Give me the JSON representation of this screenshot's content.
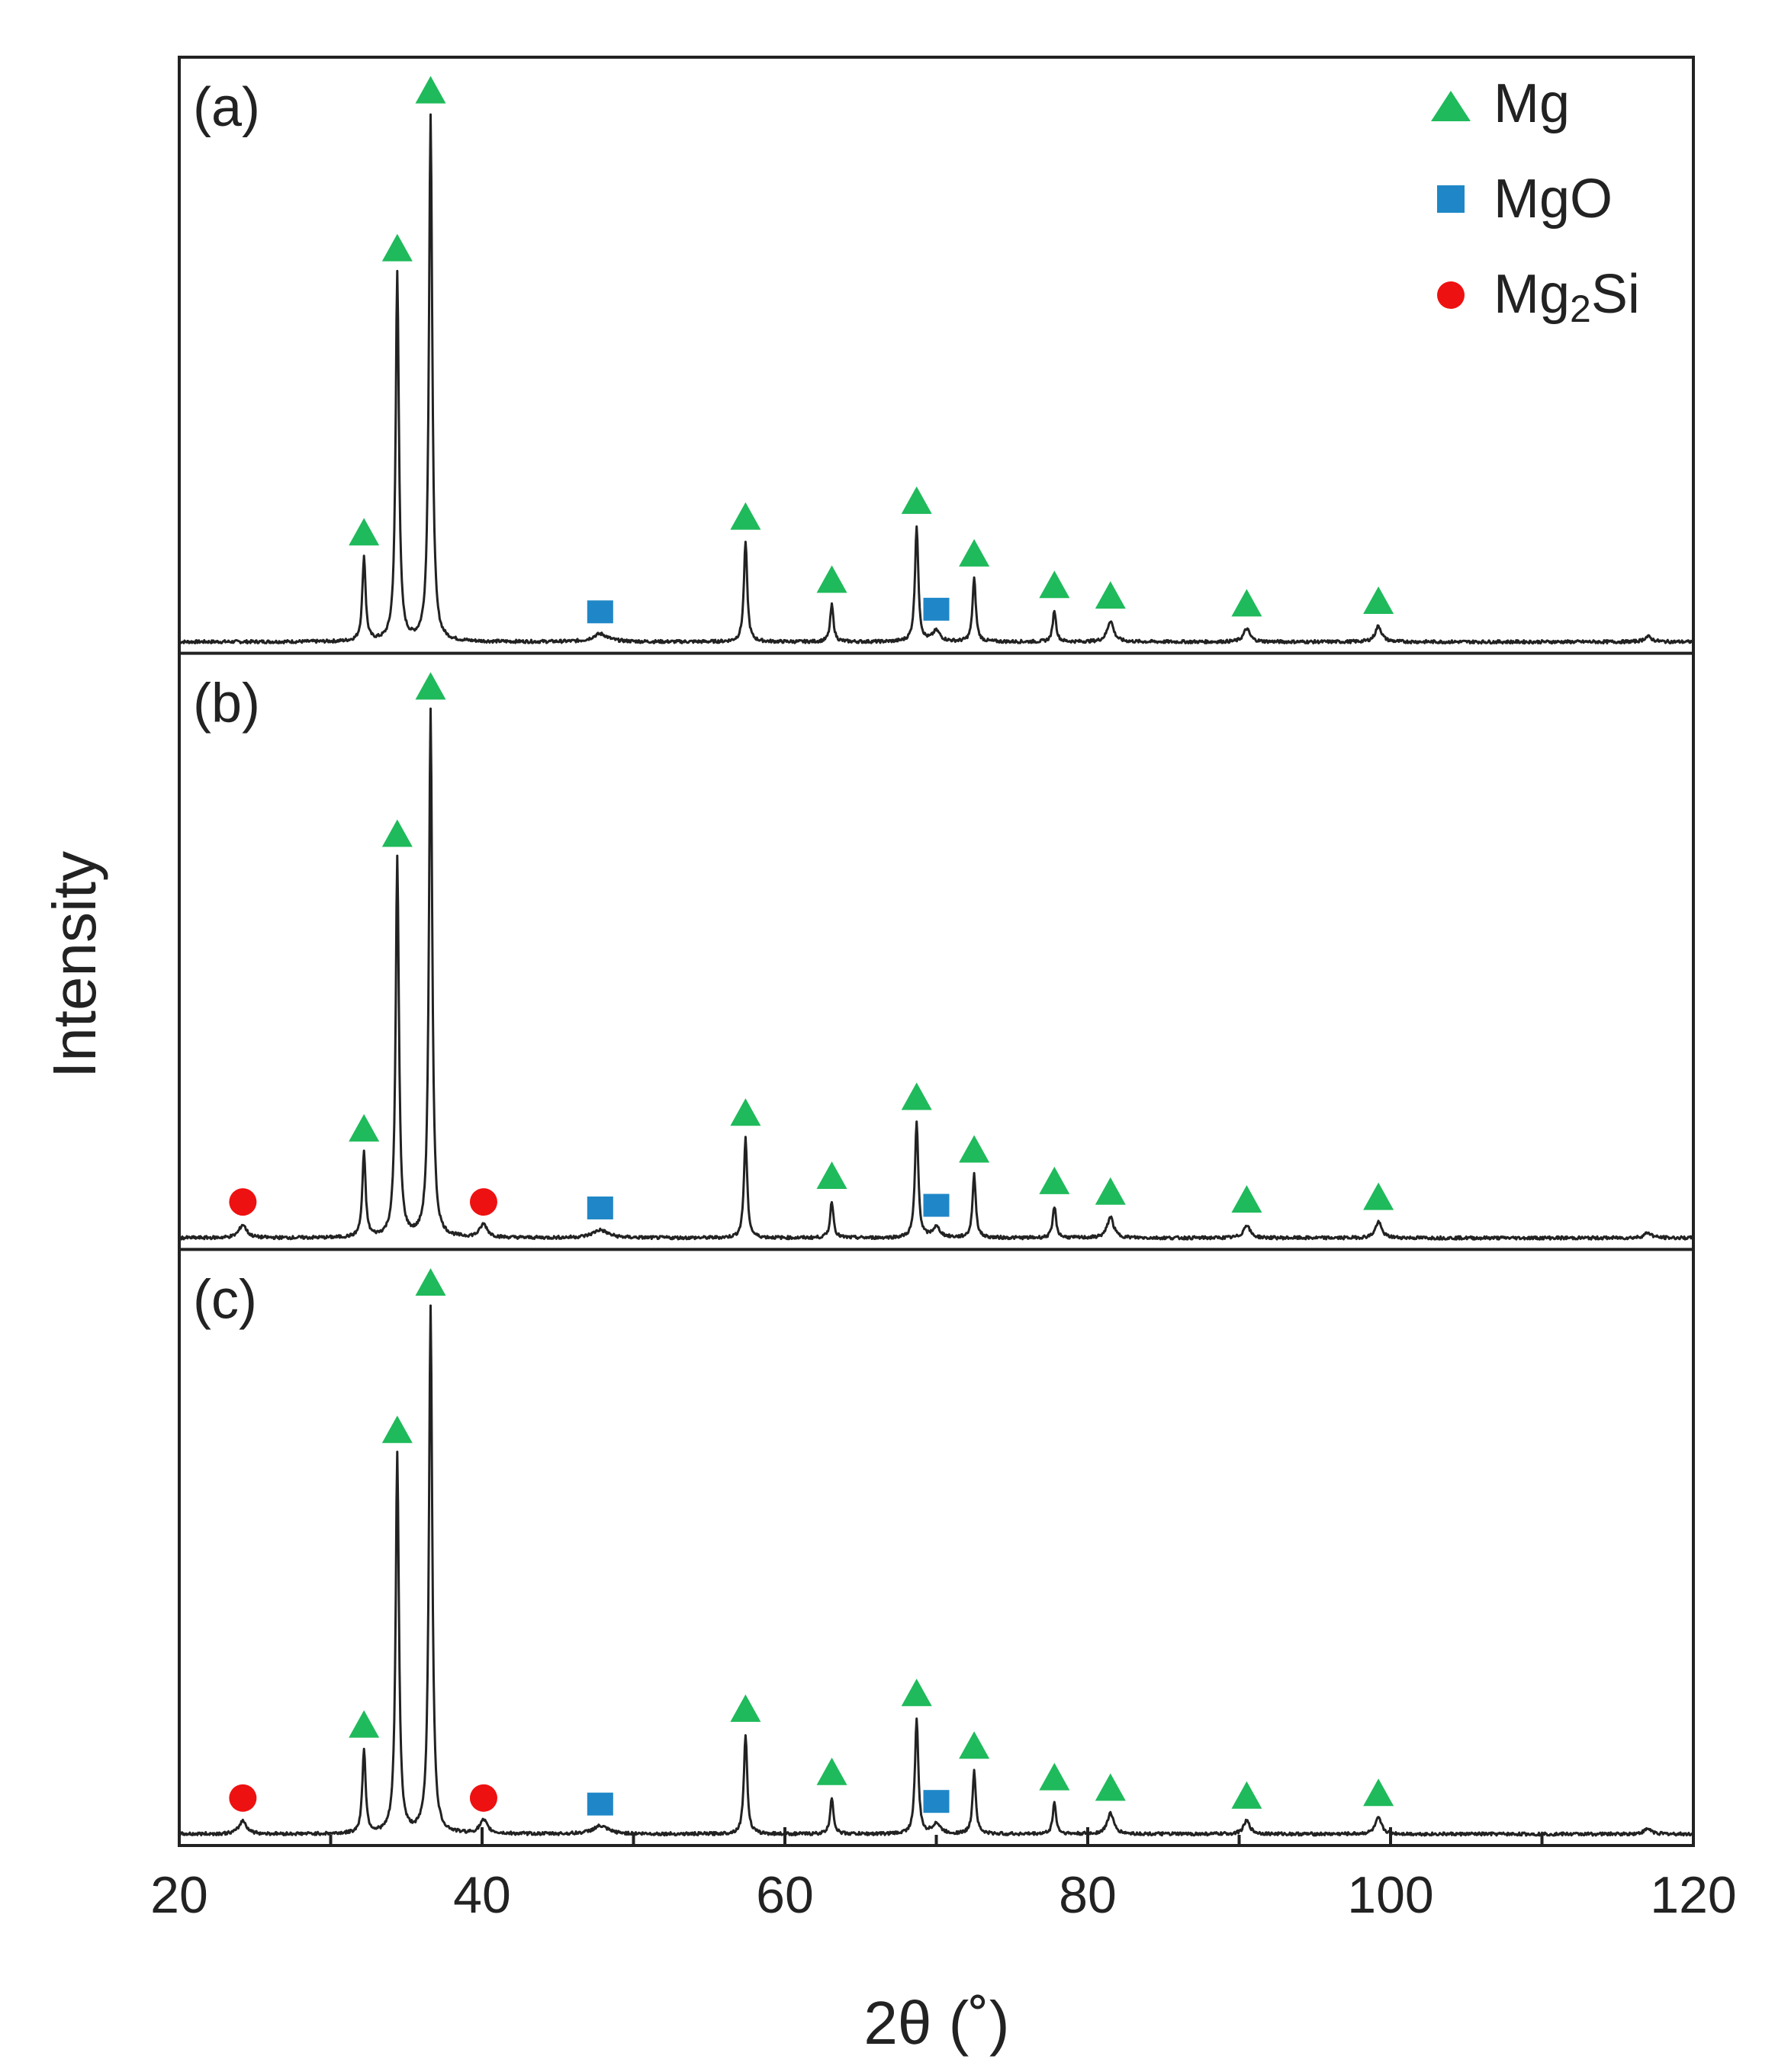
{
  "chart_data": {
    "type": "line",
    "title": "",
    "xlabel": "2θ (˚)",
    "ylabel": "Intensity",
    "xlim": [
      20,
      120
    ],
    "xticks": [
      20,
      40,
      60,
      80,
      100,
      120
    ],
    "grid": false,
    "legend_position": "top-right",
    "legend": [
      {
        "name": "Mg",
        "marker": "triangle",
        "color": "#1fba5b"
      },
      {
        "name": "MgO",
        "marker": "square",
        "color": "#1f87c7"
      },
      {
        "name": "Mg2Si",
        "label_main": "Mg",
        "label_sub": "2",
        "label_tail": "Si",
        "marker": "circle",
        "color": "#ee1111"
      }
    ],
    "panels": [
      {
        "label": "(a)",
        "peaks": [
          {
            "x": 32.2,
            "h": 0.16,
            "w": 0.13
          },
          {
            "x": 34.4,
            "h": 0.7,
            "w": 0.13
          },
          {
            "x": 36.6,
            "h": 1.0,
            "w": 0.13
          },
          {
            "x": 47.8,
            "h": 0.015,
            "w": 0.6
          },
          {
            "x": 57.4,
            "h": 0.19,
            "w": 0.13
          },
          {
            "x": 63.1,
            "h": 0.07,
            "w": 0.13
          },
          {
            "x": 68.7,
            "h": 0.22,
            "w": 0.13
          },
          {
            "x": 70.0,
            "h": 0.02,
            "w": 0.3
          },
          {
            "x": 72.5,
            "h": 0.12,
            "w": 0.13
          },
          {
            "x": 77.8,
            "h": 0.06,
            "w": 0.13
          },
          {
            "x": 81.5,
            "h": 0.04,
            "w": 0.25
          },
          {
            "x": 90.5,
            "h": 0.025,
            "w": 0.25
          },
          {
            "x": 99.2,
            "h": 0.03,
            "w": 0.25
          },
          {
            "x": 117.0,
            "h": 0.01,
            "w": 0.3
          }
        ],
        "markers": [
          {
            "phase": "Mg",
            "x": 32.2
          },
          {
            "phase": "Mg",
            "x": 34.4
          },
          {
            "phase": "Mg",
            "x": 36.6
          },
          {
            "phase": "Mg",
            "x": 57.4
          },
          {
            "phase": "Mg",
            "x": 63.1
          },
          {
            "phase": "Mg",
            "x": 68.7
          },
          {
            "phase": "Mg",
            "x": 72.5
          },
          {
            "phase": "Mg",
            "x": 77.8
          },
          {
            "phase": "Mg",
            "x": 81.5
          },
          {
            "phase": "Mg",
            "x": 90.5
          },
          {
            "phase": "Mg",
            "x": 99.2
          },
          {
            "phase": "MgO",
            "x": 47.8
          },
          {
            "phase": "MgO",
            "x": 70.0
          }
        ]
      },
      {
        "label": "(b)",
        "peaks": [
          {
            "x": 24.2,
            "h": 0.025,
            "w": 0.3
          },
          {
            "x": 32.2,
            "h": 0.16,
            "w": 0.13
          },
          {
            "x": 34.4,
            "h": 0.72,
            "w": 0.13
          },
          {
            "x": 36.6,
            "h": 1.0,
            "w": 0.13
          },
          {
            "x": 40.1,
            "h": 0.025,
            "w": 0.3
          },
          {
            "x": 47.8,
            "h": 0.015,
            "w": 0.6
          },
          {
            "x": 57.4,
            "h": 0.19,
            "w": 0.13
          },
          {
            "x": 63.1,
            "h": 0.07,
            "w": 0.13
          },
          {
            "x": 68.7,
            "h": 0.22,
            "w": 0.13
          },
          {
            "x": 70.0,
            "h": 0.02,
            "w": 0.3
          },
          {
            "x": 72.5,
            "h": 0.12,
            "w": 0.13
          },
          {
            "x": 77.8,
            "h": 0.06,
            "w": 0.13
          },
          {
            "x": 81.5,
            "h": 0.04,
            "w": 0.25
          },
          {
            "x": 90.5,
            "h": 0.025,
            "w": 0.25
          },
          {
            "x": 99.2,
            "h": 0.03,
            "w": 0.25
          },
          {
            "x": 117.0,
            "h": 0.01,
            "w": 0.3
          }
        ],
        "markers": [
          {
            "phase": "Mg2Si",
            "x": 24.2
          },
          {
            "phase": "Mg2Si",
            "x": 40.1
          },
          {
            "phase": "Mg",
            "x": 32.2
          },
          {
            "phase": "Mg",
            "x": 34.4
          },
          {
            "phase": "Mg",
            "x": 36.6
          },
          {
            "phase": "Mg",
            "x": 57.4
          },
          {
            "phase": "Mg",
            "x": 63.1
          },
          {
            "phase": "Mg",
            "x": 68.7
          },
          {
            "phase": "Mg",
            "x": 72.5
          },
          {
            "phase": "Mg",
            "x": 77.8
          },
          {
            "phase": "Mg",
            "x": 81.5
          },
          {
            "phase": "Mg",
            "x": 90.5
          },
          {
            "phase": "Mg",
            "x": 99.2
          },
          {
            "phase": "MgO",
            "x": 47.8
          },
          {
            "phase": "MgO",
            "x": 70.0
          }
        ]
      },
      {
        "label": "(c)",
        "peaks": [
          {
            "x": 24.2,
            "h": 0.025,
            "w": 0.3
          },
          {
            "x": 32.2,
            "h": 0.16,
            "w": 0.13
          },
          {
            "x": 34.4,
            "h": 0.72,
            "w": 0.13
          },
          {
            "x": 36.6,
            "h": 1.0,
            "w": 0.13
          },
          {
            "x": 40.1,
            "h": 0.025,
            "w": 0.3
          },
          {
            "x": 47.8,
            "h": 0.015,
            "w": 0.6
          },
          {
            "x": 57.4,
            "h": 0.19,
            "w": 0.13
          },
          {
            "x": 63.1,
            "h": 0.07,
            "w": 0.13
          },
          {
            "x": 68.7,
            "h": 0.22,
            "w": 0.13
          },
          {
            "x": 70.0,
            "h": 0.02,
            "w": 0.3
          },
          {
            "x": 72.5,
            "h": 0.12,
            "w": 0.13
          },
          {
            "x": 77.8,
            "h": 0.06,
            "w": 0.13
          },
          {
            "x": 81.5,
            "h": 0.04,
            "w": 0.25
          },
          {
            "x": 90.5,
            "h": 0.025,
            "w": 0.25
          },
          {
            "x": 99.2,
            "h": 0.03,
            "w": 0.25
          },
          {
            "x": 117.0,
            "h": 0.01,
            "w": 0.3
          }
        ],
        "markers": [
          {
            "phase": "Mg2Si",
            "x": 24.2
          },
          {
            "phase": "Mg2Si",
            "x": 40.1
          },
          {
            "phase": "Mg",
            "x": 32.2
          },
          {
            "phase": "Mg",
            "x": 34.4
          },
          {
            "phase": "Mg",
            "x": 36.6
          },
          {
            "phase": "Mg",
            "x": 57.4
          },
          {
            "phase": "Mg",
            "x": 63.1
          },
          {
            "phase": "Mg",
            "x": 68.7
          },
          {
            "phase": "Mg",
            "x": 72.5
          },
          {
            "phase": "Mg",
            "x": 77.8
          },
          {
            "phase": "Mg",
            "x": 81.5
          },
          {
            "phase": "Mg",
            "x": 90.5
          },
          {
            "phase": "Mg",
            "x": 99.2
          },
          {
            "phase": "MgO",
            "x": 47.8
          },
          {
            "phase": "MgO",
            "x": 70.0
          }
        ]
      }
    ]
  }
}
